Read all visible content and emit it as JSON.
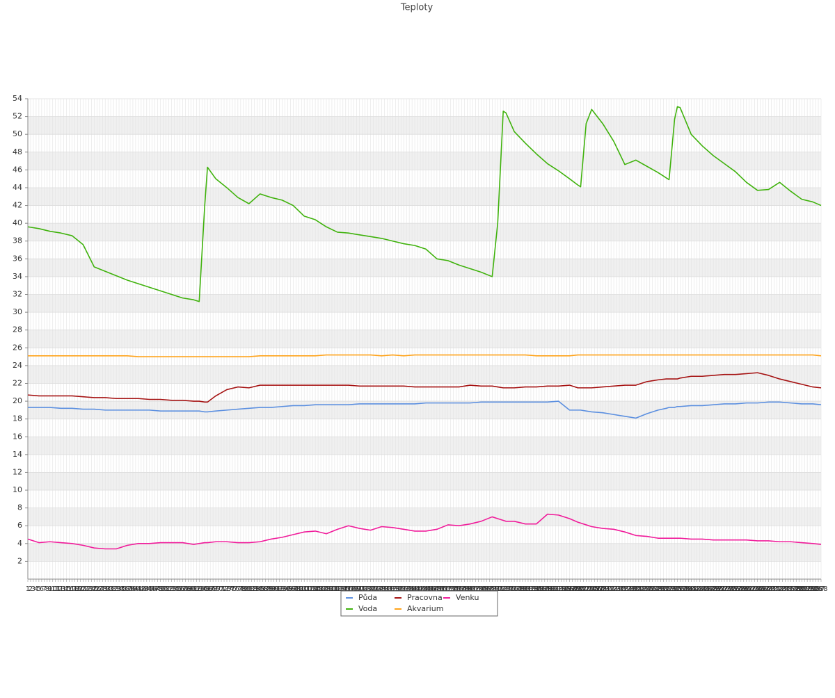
{
  "chart_data": {
    "type": "line",
    "title": "Teploty",
    "x": [
      1,
      5,
      9,
      13,
      17,
      21,
      25,
      29,
      33,
      37,
      41,
      45,
      49,
      53,
      57,
      61,
      63,
      65,
      66,
      69,
      73,
      77,
      81,
      85,
      89,
      93,
      97,
      101,
      105,
      109,
      113,
      117,
      121,
      125,
      129,
      133,
      137,
      141,
      145,
      149,
      153,
      157,
      161,
      165,
      169,
      171,
      173,
      174,
      177,
      181,
      185,
      189,
      193,
      197,
      200,
      201,
      203,
      205,
      209,
      213,
      217,
      221,
      225,
      229,
      232,
      233,
      235,
      236,
      237,
      241,
      245,
      249,
      253,
      257,
      261,
      265,
      269,
      273,
      277,
      281,
      285,
      288
    ],
    "series": [
      {
        "name": "Půda",
        "color": "#5b8fe0",
        "values": [
          19.3,
          19.3,
          19.3,
          19.2,
          19.2,
          19.1,
          19.1,
          19.0,
          19.0,
          19.0,
          19.0,
          19.0,
          18.9,
          18.9,
          18.9,
          18.9,
          18.9,
          18.8,
          18.8,
          18.9,
          19.0,
          19.1,
          19.2,
          19.3,
          19.3,
          19.4,
          19.5,
          19.5,
          19.6,
          19.6,
          19.6,
          19.6,
          19.7,
          19.7,
          19.7,
          19.7,
          19.7,
          19.7,
          19.8,
          19.8,
          19.8,
          19.8,
          19.8,
          19.9,
          19.9,
          19.9,
          19.9,
          19.9,
          19.9,
          19.9,
          19.9,
          19.9,
          20.0,
          19.0,
          19.0,
          19.0,
          18.9,
          18.8,
          18.7,
          18.5,
          18.3,
          18.1,
          18.6,
          19.0,
          19.2,
          19.3,
          19.3,
          19.4,
          19.4,
          19.5,
          19.5,
          19.6,
          19.7,
          19.7,
          19.8,
          19.8,
          19.9,
          19.9,
          19.8,
          19.7,
          19.7,
          19.6
        ]
      },
      {
        "name": "Voda",
        "color": "#3fb20c",
        "values": [
          39.6,
          39.4,
          39.1,
          38.9,
          38.6,
          37.6,
          35.1,
          34.6,
          34.1,
          33.6,
          33.2,
          32.8,
          32.4,
          32.0,
          31.6,
          31.4,
          31.2,
          42,
          46.3,
          45,
          44,
          42.9,
          42.2,
          43.3,
          42.9,
          42.6,
          42.0,
          40.8,
          40.4,
          39.6,
          39.0,
          38.9,
          38.7,
          38.5,
          38.3,
          38.0,
          37.7,
          37.5,
          37.1,
          36.0,
          35.8,
          35.3,
          34.9,
          34.5,
          34.0,
          40,
          52.6,
          52.4,
          50.3,
          49.0,
          47.8,
          46.7,
          45.9,
          45.0,
          44.3,
          44.1,
          51.2,
          52.8,
          51.2,
          49.2,
          46.6,
          47.1,
          46.4,
          45.7,
          45.1,
          44.9,
          51.7,
          53.1,
          53.0,
          50.0,
          48.7,
          47.6,
          46.7,
          45.8,
          44.6,
          43.7,
          43.8,
          44.6,
          43.6,
          42.7,
          42.4,
          42.0
        ]
      },
      {
        "name": "Pracovna",
        "color": "#a51212",
        "values": [
          20.7,
          20.6,
          20.6,
          20.6,
          20.6,
          20.5,
          20.4,
          20.4,
          20.3,
          20.3,
          20.3,
          20.2,
          20.2,
          20.1,
          20.1,
          20.0,
          20.0,
          19.9,
          19.9,
          20.6,
          21.3,
          21.6,
          21.5,
          21.8,
          21.8,
          21.8,
          21.8,
          21.8,
          21.8,
          21.8,
          21.8,
          21.8,
          21.7,
          21.7,
          21.7,
          21.7,
          21.7,
          21.6,
          21.6,
          21.6,
          21.6,
          21.6,
          21.8,
          21.7,
          21.7,
          21.6,
          21.5,
          21.5,
          21.5,
          21.6,
          21.6,
          21.7,
          21.7,
          21.8,
          21.5,
          21.5,
          21.5,
          21.5,
          21.6,
          21.7,
          21.8,
          21.8,
          22.2,
          22.4,
          22.5,
          22.5,
          22.5,
          22.5,
          22.6,
          22.8,
          22.8,
          22.9,
          23.0,
          23.0,
          23.1,
          23.2,
          22.9,
          22.5,
          22.2,
          21.9,
          21.6,
          21.5
        ]
      },
      {
        "name": "Akvarium",
        "color": "#ffa31a",
        "values": [
          25.1,
          25.1,
          25.1,
          25.1,
          25.1,
          25.1,
          25.1,
          25.1,
          25.1,
          25.1,
          25.0,
          25.0,
          25.0,
          25.0,
          25.0,
          25.0,
          25.0,
          25.0,
          25.0,
          25.0,
          25.0,
          25.0,
          25.0,
          25.1,
          25.1,
          25.1,
          25.1,
          25.1,
          25.1,
          25.2,
          25.2,
          25.2,
          25.2,
          25.2,
          25.1,
          25.2,
          25.1,
          25.2,
          25.2,
          25.2,
          25.2,
          25.2,
          25.2,
          25.2,
          25.2,
          25.2,
          25.2,
          25.2,
          25.2,
          25.2,
          25.1,
          25.1,
          25.1,
          25.1,
          25.2,
          25.2,
          25.2,
          25.2,
          25.2,
          25.2,
          25.2,
          25.2,
          25.2,
          25.2,
          25.2,
          25.2,
          25.2,
          25.2,
          25.2,
          25.2,
          25.2,
          25.2,
          25.2,
          25.2,
          25.2,
          25.2,
          25.2,
          25.2,
          25.2,
          25.2,
          25.2,
          25.1
        ]
      },
      {
        "name": "Venku",
        "color": "#f01b9a",
        "values": [
          4.5,
          4.1,
          4.2,
          4.1,
          4.0,
          3.8,
          3.5,
          3.4,
          3.4,
          3.8,
          4.0,
          4.0,
          4.1,
          4.1,
          4.1,
          3.9,
          4.0,
          4.1,
          4.1,
          4.2,
          4.2,
          4.1,
          4.1,
          4.2,
          4.5,
          4.7,
          5.0,
          5.3,
          5.4,
          5.1,
          5.6,
          6.0,
          5.7,
          5.5,
          5.9,
          5.8,
          5.6,
          5.4,
          5.4,
          5.6,
          6.1,
          6.0,
          6.2,
          6.5,
          7.0,
          6.8,
          6.6,
          6.5,
          6.5,
          6.2,
          6.2,
          7.3,
          7.2,
          6.8,
          6.4,
          6.3,
          6.1,
          5.9,
          5.7,
          5.6,
          5.3,
          4.9,
          4.8,
          4.6,
          4.6,
          4.6,
          4.6,
          4.6,
          4.6,
          4.5,
          4.5,
          4.4,
          4.4,
          4.4,
          4.4,
          4.3,
          4.3,
          4.2,
          4.2,
          4.1,
          4.0,
          3.9
        ]
      }
    ],
    "xlim": [
      1,
      288
    ],
    "xticks": [
      1,
      2,
      3,
      4,
      5,
      6,
      7,
      8,
      9,
      10,
      11,
      12,
      13,
      14,
      15,
      16,
      17,
      18,
      19,
      20,
      21,
      22,
      23,
      24,
      25,
      26,
      27,
      28,
      29,
      30,
      31,
      32,
      33,
      34,
      35,
      36,
      37,
      38,
      39,
      40,
      41,
      42,
      43,
      44,
      45,
      46,
      47,
      48,
      49,
      50,
      51,
      52,
      53,
      54,
      55,
      56,
      57,
      58,
      59,
      60,
      61,
      62,
      63,
      64,
      65,
      66,
      67,
      68,
      69,
      70,
      71,
      72,
      73,
      74,
      75,
      76,
      77,
      78,
      79,
      80,
      81,
      82,
      83,
      84,
      85,
      86,
      87,
      88,
      89,
      90,
      91,
      92,
      93,
      94,
      95,
      96,
      97,
      98,
      99,
      100,
      101,
      102,
      103,
      104,
      105,
      106,
      107,
      108,
      109,
      110,
      111,
      112,
      113,
      114,
      115,
      116,
      117,
      118,
      119,
      120,
      121,
      122,
      123,
      124,
      125,
      126,
      127,
      128,
      129,
      130,
      131,
      132,
      133,
      134,
      135,
      136,
      137,
      138,
      139,
      140,
      141,
      142,
      143,
      144,
      145,
      146,
      147,
      148,
      149,
      150,
      151,
      152,
      153,
      154,
      155,
      156,
      157,
      158,
      159,
      160,
      161,
      162,
      163,
      164,
      165,
      166,
      167,
      168,
      169,
      170,
      171,
      172,
      173,
      174,
      175,
      176,
      177,
      178,
      179,
      180,
      181,
      182,
      183,
      184,
      185,
      186,
      187,
      188,
      189,
      190,
      191,
      192,
      193,
      194,
      195,
      196,
      197,
      198,
      199,
      200,
      201,
      202,
      203,
      204,
      205,
      206,
      207,
      208,
      209,
      210,
      211,
      212,
      213,
      214,
      215,
      216,
      217,
      218,
      219,
      220,
      221,
      222,
      223,
      224,
      225,
      226,
      227,
      228,
      229,
      230,
      231,
      232,
      233,
      234,
      235,
      236,
      237,
      238,
      239,
      240,
      241,
      242,
      243,
      244,
      245,
      246,
      247,
      248,
      249,
      250,
      251,
      252,
      253,
      254,
      255,
      256,
      257,
      258,
      259,
      260,
      261,
      262,
      263,
      264,
      265,
      266,
      267,
      268,
      269,
      270,
      271,
      272,
      273,
      274,
      275,
      276,
      277,
      278,
      279,
      280,
      281,
      282,
      283,
      284,
      285,
      286,
      287,
      288
    ],
    "ylim": [
      0,
      54
    ],
    "yticks": [
      2,
      4,
      6,
      8,
      10,
      12,
      14,
      16,
      18,
      20,
      22,
      24,
      26,
      28,
      30,
      32,
      34,
      36,
      38,
      40,
      42,
      44,
      46,
      48,
      50,
      52,
      54
    ],
    "grid": true,
    "legend": "bottom"
  }
}
